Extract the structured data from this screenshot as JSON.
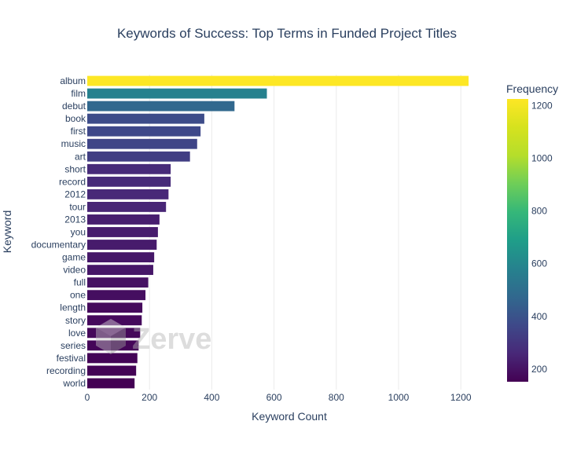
{
  "chart_data": {
    "type": "bar",
    "orientation": "horizontal",
    "title": "Keywords of Success: Top Terms in Funded Project Titles",
    "xlabel": "Keyword Count",
    "ylabel": "Keyword",
    "xlim": [
      0,
      1250
    ],
    "xticks": [
      0,
      200,
      400,
      600,
      800,
      1000,
      1200
    ],
    "grid": true,
    "categories": [
      "album",
      "film",
      "debut",
      "book",
      "first",
      "music",
      "art",
      "short",
      "record",
      "2012",
      "tour",
      "2013",
      "you",
      "documentary",
      "game",
      "video",
      "full",
      "one",
      "length",
      "story",
      "love",
      "series",
      "festival",
      "recording",
      "world"
    ],
    "values": [
      1225,
      577,
      473,
      376,
      364,
      353,
      330,
      268,
      268,
      261,
      253,
      232,
      227,
      223,
      215,
      212,
      196,
      187,
      177,
      175,
      170,
      165,
      161,
      157,
      152
    ],
    "colorbar": {
      "title": "Frequency",
      "colorscale": "Viridis",
      "range": [
        152,
        1225
      ],
      "ticks": [
        200,
        400,
        600,
        800,
        1000,
        1200
      ]
    }
  },
  "watermark": {
    "text": "Zerve"
  }
}
